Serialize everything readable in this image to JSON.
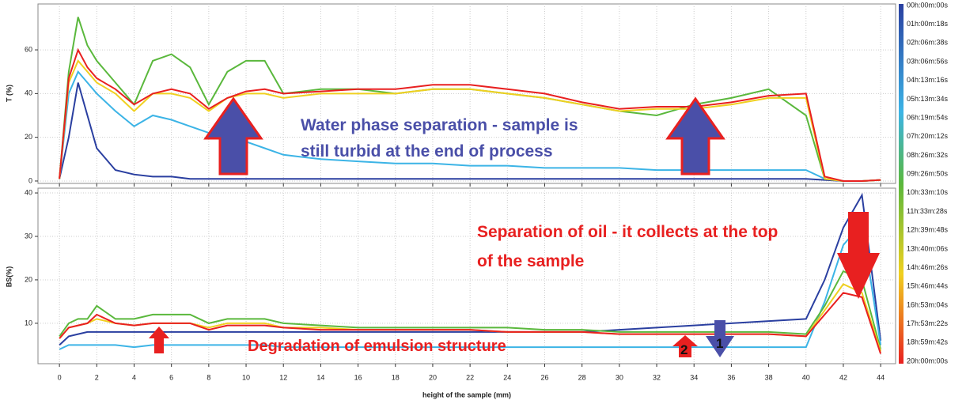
{
  "chart_data": [
    {
      "type": "line",
      "ylabel": "T (%)",
      "x": [
        0,
        0.5,
        1,
        1.5,
        2,
        3,
        4,
        5,
        6,
        7,
        8,
        9,
        10,
        11,
        12,
        14,
        16,
        18,
        20,
        22,
        24,
        26,
        28,
        30,
        32,
        34,
        36,
        38,
        40,
        41,
        42,
        43,
        44
      ],
      "xlim": [
        -1.15,
        44.8
      ],
      "xticks": [
        0,
        2,
        4,
        6,
        8,
        10,
        12,
        14,
        16,
        18,
        20,
        22,
        24,
        26,
        28,
        30,
        32,
        34,
        36,
        38,
        40,
        42,
        44
      ],
      "ylim": [
        -1.1,
        81
      ],
      "yticks": [
        0,
        20,
        40,
        60
      ],
      "grid": true,
      "series": [
        {
          "color": "#2a3fa0",
          "values": [
            1,
            20,
            45,
            30,
            15,
            5,
            3,
            2,
            2,
            1,
            1,
            1,
            1,
            1,
            1,
            1,
            1,
            1,
            1,
            1,
            1,
            1,
            1,
            1,
            1,
            1,
            1,
            1,
            1,
            0.5,
            0,
            0,
            0.5
          ]
        },
        {
          "color": "#3cb4e6",
          "values": [
            1,
            40,
            50,
            45,
            40,
            32,
            25,
            30,
            28,
            25,
            22,
            20,
            18,
            15,
            12,
            10,
            9,
            8,
            8,
            7,
            7,
            6,
            6,
            6,
            5,
            5,
            5,
            5,
            5,
            1,
            0,
            0,
            0.5
          ]
        },
        {
          "color": "#5ab83c",
          "values": [
            1,
            50,
            75,
            62,
            55,
            45,
            35,
            55,
            58,
            52,
            35,
            50,
            55,
            55,
            40,
            42,
            42,
            40,
            42,
            42,
            40,
            38,
            35,
            32,
            30,
            35,
            38,
            42,
            30,
            1,
            0,
            0,
            0.5
          ]
        },
        {
          "color": "#f0d020",
          "values": [
            1,
            45,
            55,
            50,
            45,
            40,
            32,
            40,
            40,
            38,
            32,
            38,
            40,
            40,
            38,
            40,
            40,
            40,
            42,
            42,
            40,
            38,
            35,
            32,
            33,
            33,
            35,
            38,
            38,
            1,
            0,
            0,
            0.5
          ]
        },
        {
          "color": "#e82020",
          "values": [
            1,
            47,
            60,
            52,
            47,
            42,
            35,
            40,
            42,
            40,
            33,
            38,
            41,
            42,
            40,
            41,
            42,
            42,
            44,
            44,
            42,
            40,
            36,
            33,
            34,
            34,
            36,
            39,
            40,
            2,
            0,
            0,
            0.5
          ]
        }
      ],
      "annotations": [
        "Water phase separation - sample is",
        "still turbid at the end of process"
      ]
    },
    {
      "type": "line",
      "ylabel": "BS(%)",
      "xlabel": "height of the sample (mm)",
      "x": [
        0,
        0.5,
        1,
        1.5,
        2,
        3,
        4,
        5,
        6,
        7,
        8,
        9,
        10,
        11,
        12,
        14,
        16,
        18,
        20,
        22,
        24,
        26,
        28,
        30,
        32,
        34,
        36,
        38,
        40,
        41,
        42,
        43,
        44
      ],
      "xlim": [
        -1.15,
        44.8
      ],
      "xticks": [
        0,
        2,
        4,
        6,
        8,
        10,
        12,
        14,
        16,
        18,
        20,
        22,
        24,
        26,
        28,
        30,
        32,
        34,
        36,
        38,
        40,
        42,
        44
      ],
      "ylim": [
        0.7,
        41.1
      ],
      "yticks": [
        10,
        20,
        30,
        40
      ],
      "grid": true,
      "series": [
        {
          "color": "#2a3fa0",
          "values": [
            5,
            7,
            7.5,
            8,
            8,
            8,
            8,
            8,
            8,
            8,
            8,
            8,
            8,
            8,
            8,
            8,
            8,
            8,
            8,
            8,
            8,
            8,
            8,
            8.5,
            9,
            9.5,
            10,
            10.5,
            11,
            20,
            32,
            39.5,
            6
          ]
        },
        {
          "color": "#3cb4e6",
          "values": [
            4,
            5,
            5,
            5,
            5,
            5,
            4.5,
            5,
            5,
            5,
            5,
            5,
            5,
            5,
            4.5,
            4.5,
            4.5,
            4.5,
            4.5,
            4.5,
            4.5,
            4.5,
            4.5,
            4.5,
            4.5,
            4.5,
            4.5,
            4.5,
            4.5,
            15,
            28,
            33,
            5
          ]
        },
        {
          "color": "#5ab83c",
          "values": [
            7,
            10,
            11,
            11,
            14,
            11,
            11,
            12,
            12,
            12,
            10,
            11,
            11,
            11,
            10,
            9.5,
            9,
            9,
            9,
            9,
            9,
            8.5,
            8.5,
            8,
            8,
            8,
            8,
            8,
            7.5,
            14,
            22,
            20,
            4
          ]
        },
        {
          "color": "#f0d020",
          "values": [
            6.5,
            9,
            9.5,
            10,
            11,
            10,
            9.5,
            10,
            10,
            10,
            9,
            10,
            10,
            10,
            9,
            9,
            8.5,
            8.5,
            8.5,
            8.5,
            8,
            8,
            8,
            7.5,
            7.5,
            7.5,
            7.5,
            7.5,
            7,
            13,
            19,
            17,
            3.5
          ]
        },
        {
          "color": "#e82020",
          "values": [
            6.5,
            9,
            9.5,
            10,
            12,
            10,
            9.5,
            10,
            10,
            10,
            8.5,
            9.5,
            9.5,
            9.5,
            9,
            8.5,
            8.5,
            8.5,
            8.5,
            8.5,
            8,
            8,
            8,
            7.5,
            7.5,
            7.5,
            7.5,
            7.5,
            7,
            12,
            17,
            16,
            3
          ]
        }
      ],
      "annotations": [
        "Separation of oil - it collects at the top",
        "of the sample",
        "Degradation of emulsion structure",
        "1",
        "2"
      ]
    }
  ],
  "colorbar": {
    "labels": [
      "00h:00m:00s",
      "01h:00m:18s",
      "02h:06m:38s",
      "03h:06m:56s",
      "04h:13m:16s",
      "05h:13m:34s",
      "06h:19m:54s",
      "07h:20m:12s",
      "08h:26m:32s",
      "09h:26m:50s",
      "10h:33m:10s",
      "11h:33m:28s",
      "12h:39m:48s",
      "13h:40m:06s",
      "14h:46m:26s",
      "15h:46m:44s",
      "16h:53m:04s",
      "17h:53m:22s",
      "18h:59m:42s",
      "20h:00m:00s"
    ]
  }
}
